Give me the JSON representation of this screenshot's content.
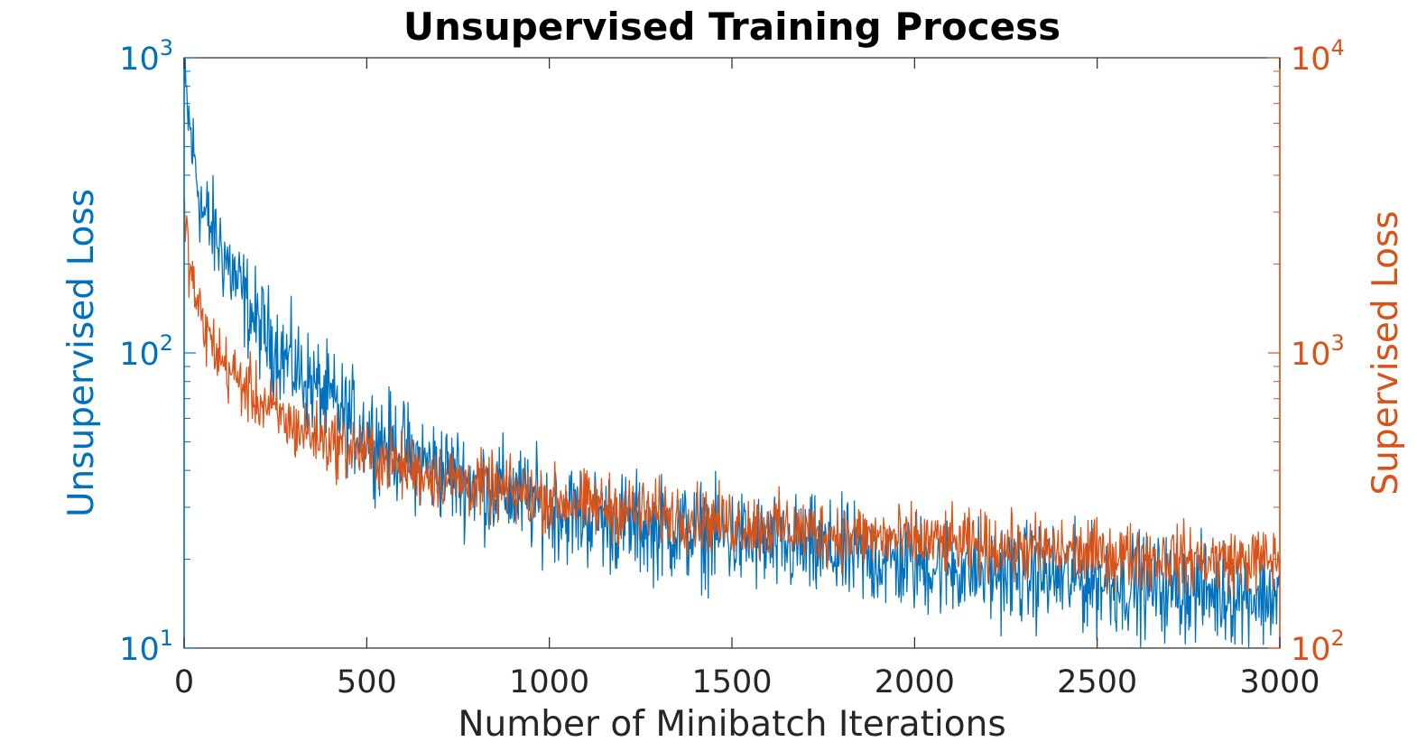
{
  "chart_data": {
    "type": "line",
    "title": "Unsupervised Training Process",
    "xlabel": "Number of Minibatch Iterations",
    "ylabel_left": "Unsupervised Loss",
    "ylabel_right": "Supervised Loss",
    "xlim": [
      0,
      3000
    ],
    "xticks": [
      "0",
      "500",
      "1000",
      "1500",
      "2000",
      "2500",
      "3000"
    ],
    "ylim_left": [
      10,
      1000
    ],
    "ylim_right": [
      100,
      10000
    ],
    "yscale_left": "log",
    "yscale_right": "log",
    "yticks_left": [
      {
        "base": "10",
        "exp": "1"
      },
      {
        "base": "10",
        "exp": "2"
      },
      {
        "base": "10",
        "exp": "3"
      }
    ],
    "yticks_right": [
      {
        "base": "10",
        "exp": "2"
      },
      {
        "base": "10",
        "exp": "3"
      },
      {
        "base": "10",
        "exp": "4"
      }
    ],
    "grid": false,
    "colors": {
      "left": "#0072BD",
      "right": "#D95319",
      "axis": "#262626",
      "title": "#000000"
    },
    "series": [
      {
        "axis": "left",
        "x": [
          0,
          20,
          50,
          100,
          150,
          200,
          250,
          300,
          350,
          400,
          450,
          500,
          600,
          700,
          800,
          900,
          1000,
          1100,
          1200,
          1300,
          1400,
          1500,
          1600,
          1700,
          1800,
          1900,
          2000,
          2100,
          2200,
          2300,
          2400,
          2500,
          2600,
          2700,
          2800,
          2900,
          3000
        ],
        "y": [
          800,
          520,
          300,
          230,
          165,
          125,
          105,
          90,
          78,
          68,
          60,
          54,
          46,
          40,
          36,
          33,
          30,
          28,
          26.5,
          25.5,
          24.5,
          23.5,
          22.5,
          21.5,
          20.7,
          20,
          19.4,
          18.8,
          18.2,
          17.7,
          17.2,
          16.8,
          16.4,
          16,
          15.6,
          15.2,
          15
        ]
      },
      {
        "axis": "right",
        "x": [
          0,
          20,
          50,
          100,
          150,
          200,
          250,
          300,
          350,
          400,
          450,
          500,
          600,
          700,
          800,
          900,
          1000,
          1100,
          1200,
          1300,
          1400,
          1500,
          1600,
          1700,
          1800,
          1900,
          2000,
          2100,
          2200,
          2300,
          2400,
          2500,
          2600,
          2700,
          2800,
          2900,
          3000
        ],
        "y": [
          2900,
          1800,
          1250,
          950,
          800,
          700,
          620,
          560,
          530,
          500,
          480,
          460,
          410,
          380,
          355,
          335,
          320,
          305,
          295,
          285,
          275,
          265,
          258,
          250,
          243,
          237,
          231,
          226,
          221,
          217,
          213,
          209,
          205,
          202,
          199,
          197,
          200
        ]
      }
    ]
  }
}
